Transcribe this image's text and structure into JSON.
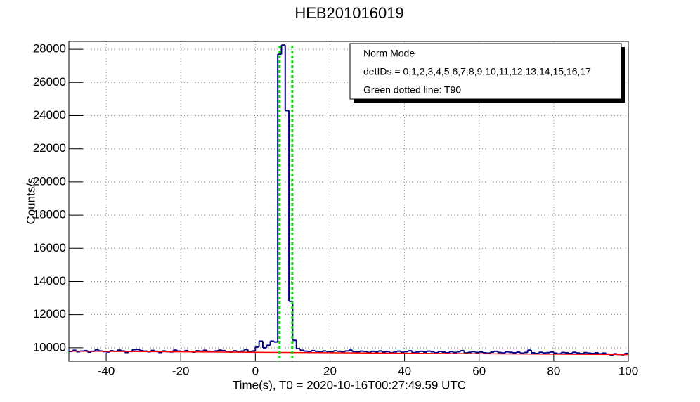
{
  "chart_data": {
    "type": "histogram",
    "title": "HEB201016019",
    "x_label": "Time(s), T0 = 2020-10-16T00:27:49.59 UTC",
    "y_label": "Counts/s",
    "xlim": [
      -50,
      100
    ],
    "ylim": [
      9190,
      28470
    ],
    "xticks": [
      -40,
      -20,
      0,
      20,
      40,
      60,
      80,
      100
    ],
    "yticks": [
      10000,
      12000,
      14000,
      16000,
      18000,
      20000,
      22000,
      24000,
      26000,
      28000
    ],
    "grid": true,
    "color": "#000080",
    "bins": [
      -50,
      -49,
      -48,
      -47,
      -46,
      -45,
      -44,
      -43,
      -42,
      -41,
      -40,
      -39,
      -38,
      -37,
      -36,
      -35,
      -34,
      -33,
      -32,
      -31,
      -30,
      -29,
      -28,
      -27,
      -26,
      -25,
      -24,
      -23,
      -22,
      -21,
      -20,
      -19,
      -18,
      -17,
      -16,
      -15,
      -14,
      -13,
      -12,
      -11,
      -10,
      -9,
      -8,
      -7,
      -6,
      -5,
      -4,
      -3,
      -2,
      -1,
      0,
      1,
      2,
      3,
      4,
      5,
      6,
      7,
      8,
      9,
      10,
      11,
      12,
      13,
      14,
      15,
      16,
      17,
      18,
      19,
      20,
      21,
      22,
      23,
      24,
      25,
      26,
      27,
      28,
      29,
      30,
      31,
      32,
      33,
      34,
      35,
      36,
      37,
      38,
      39,
      40,
      41,
      42,
      43,
      44,
      45,
      46,
      47,
      48,
      49,
      50,
      51,
      52,
      53,
      54,
      55,
      56,
      57,
      58,
      59,
      60,
      61,
      62,
      63,
      64,
      65,
      66,
      67,
      68,
      69,
      70,
      71,
      72,
      73,
      74,
      75,
      76,
      77,
      78,
      79,
      80,
      81,
      82,
      83,
      84,
      85,
      86,
      87,
      88,
      89,
      90,
      91,
      92,
      93,
      94,
      95,
      96,
      97,
      98,
      99,
      100
    ],
    "values": [
      9780,
      9850,
      9760,
      9800,
      9830,
      9740,
      9790,
      9880,
      9810,
      9770,
      9750,
      9820,
      9790,
      9860,
      9810,
      9720,
      9780,
      9890,
      9900,
      9830,
      9800,
      9760,
      9840,
      9790,
      9720,
      9810,
      9770,
      9750,
      9860,
      9800,
      9780,
      9830,
      9770,
      9740,
      9820,
      9800,
      9850,
      9790,
      9760,
      9810,
      9860,
      9830,
      9780,
      9750,
      9820,
      9760,
      9800,
      9890,
      9740,
      9810,
      10050,
      10400,
      10000,
      10150,
      10400,
      10350,
      27700,
      28250,
      24300,
      12800,
      10450,
      9950,
      9850,
      9800,
      9760,
      9830,
      9790,
      9740,
      9810,
      9780,
      9760,
      9820,
      9790,
      9750,
      9810,
      9860,
      9770,
      9740,
      9800,
      9780,
      9720,
      9790,
      9760,
      9810,
      9740,
      9780,
      9700,
      9760,
      9800,
      9730,
      9770,
      9820,
      9710,
      9750,
      9790,
      9740,
      9800,
      9760,
      9700,
      9780,
      9740,
      9700,
      9770,
      9720,
      9760,
      9830,
      9690,
      9730,
      9770,
      9720,
      9750,
      9700,
      9680,
      9740,
      9790,
      9720,
      9690,
      9760,
      9730,
      9700,
      9740,
      9680,
      9720,
      9860,
      9700,
      9660,
      9730,
      9690,
      9710,
      9750,
      9680,
      9640,
      9720,
      9700,
      9660,
      9730,
      9690,
      9650,
      9710,
      9680,
      9660,
      9700,
      9640,
      9680,
      9620,
      9560,
      9640,
      9600,
      9580,
      9660
    ],
    "background": {
      "color": "#ff0000",
      "x": [
        -50,
        100
      ],
      "values": [
        9800,
        9590
      ]
    },
    "t90": {
      "color": "#00dd00",
      "x": [
        6.5,
        9.9
      ]
    },
    "legend": [
      "Norm Mode",
      "detIDs = 0,1,2,3,4,5,6,7,8,9,10,11,12,13,14,15,16,17",
      "Green dotted line: T90"
    ]
  }
}
